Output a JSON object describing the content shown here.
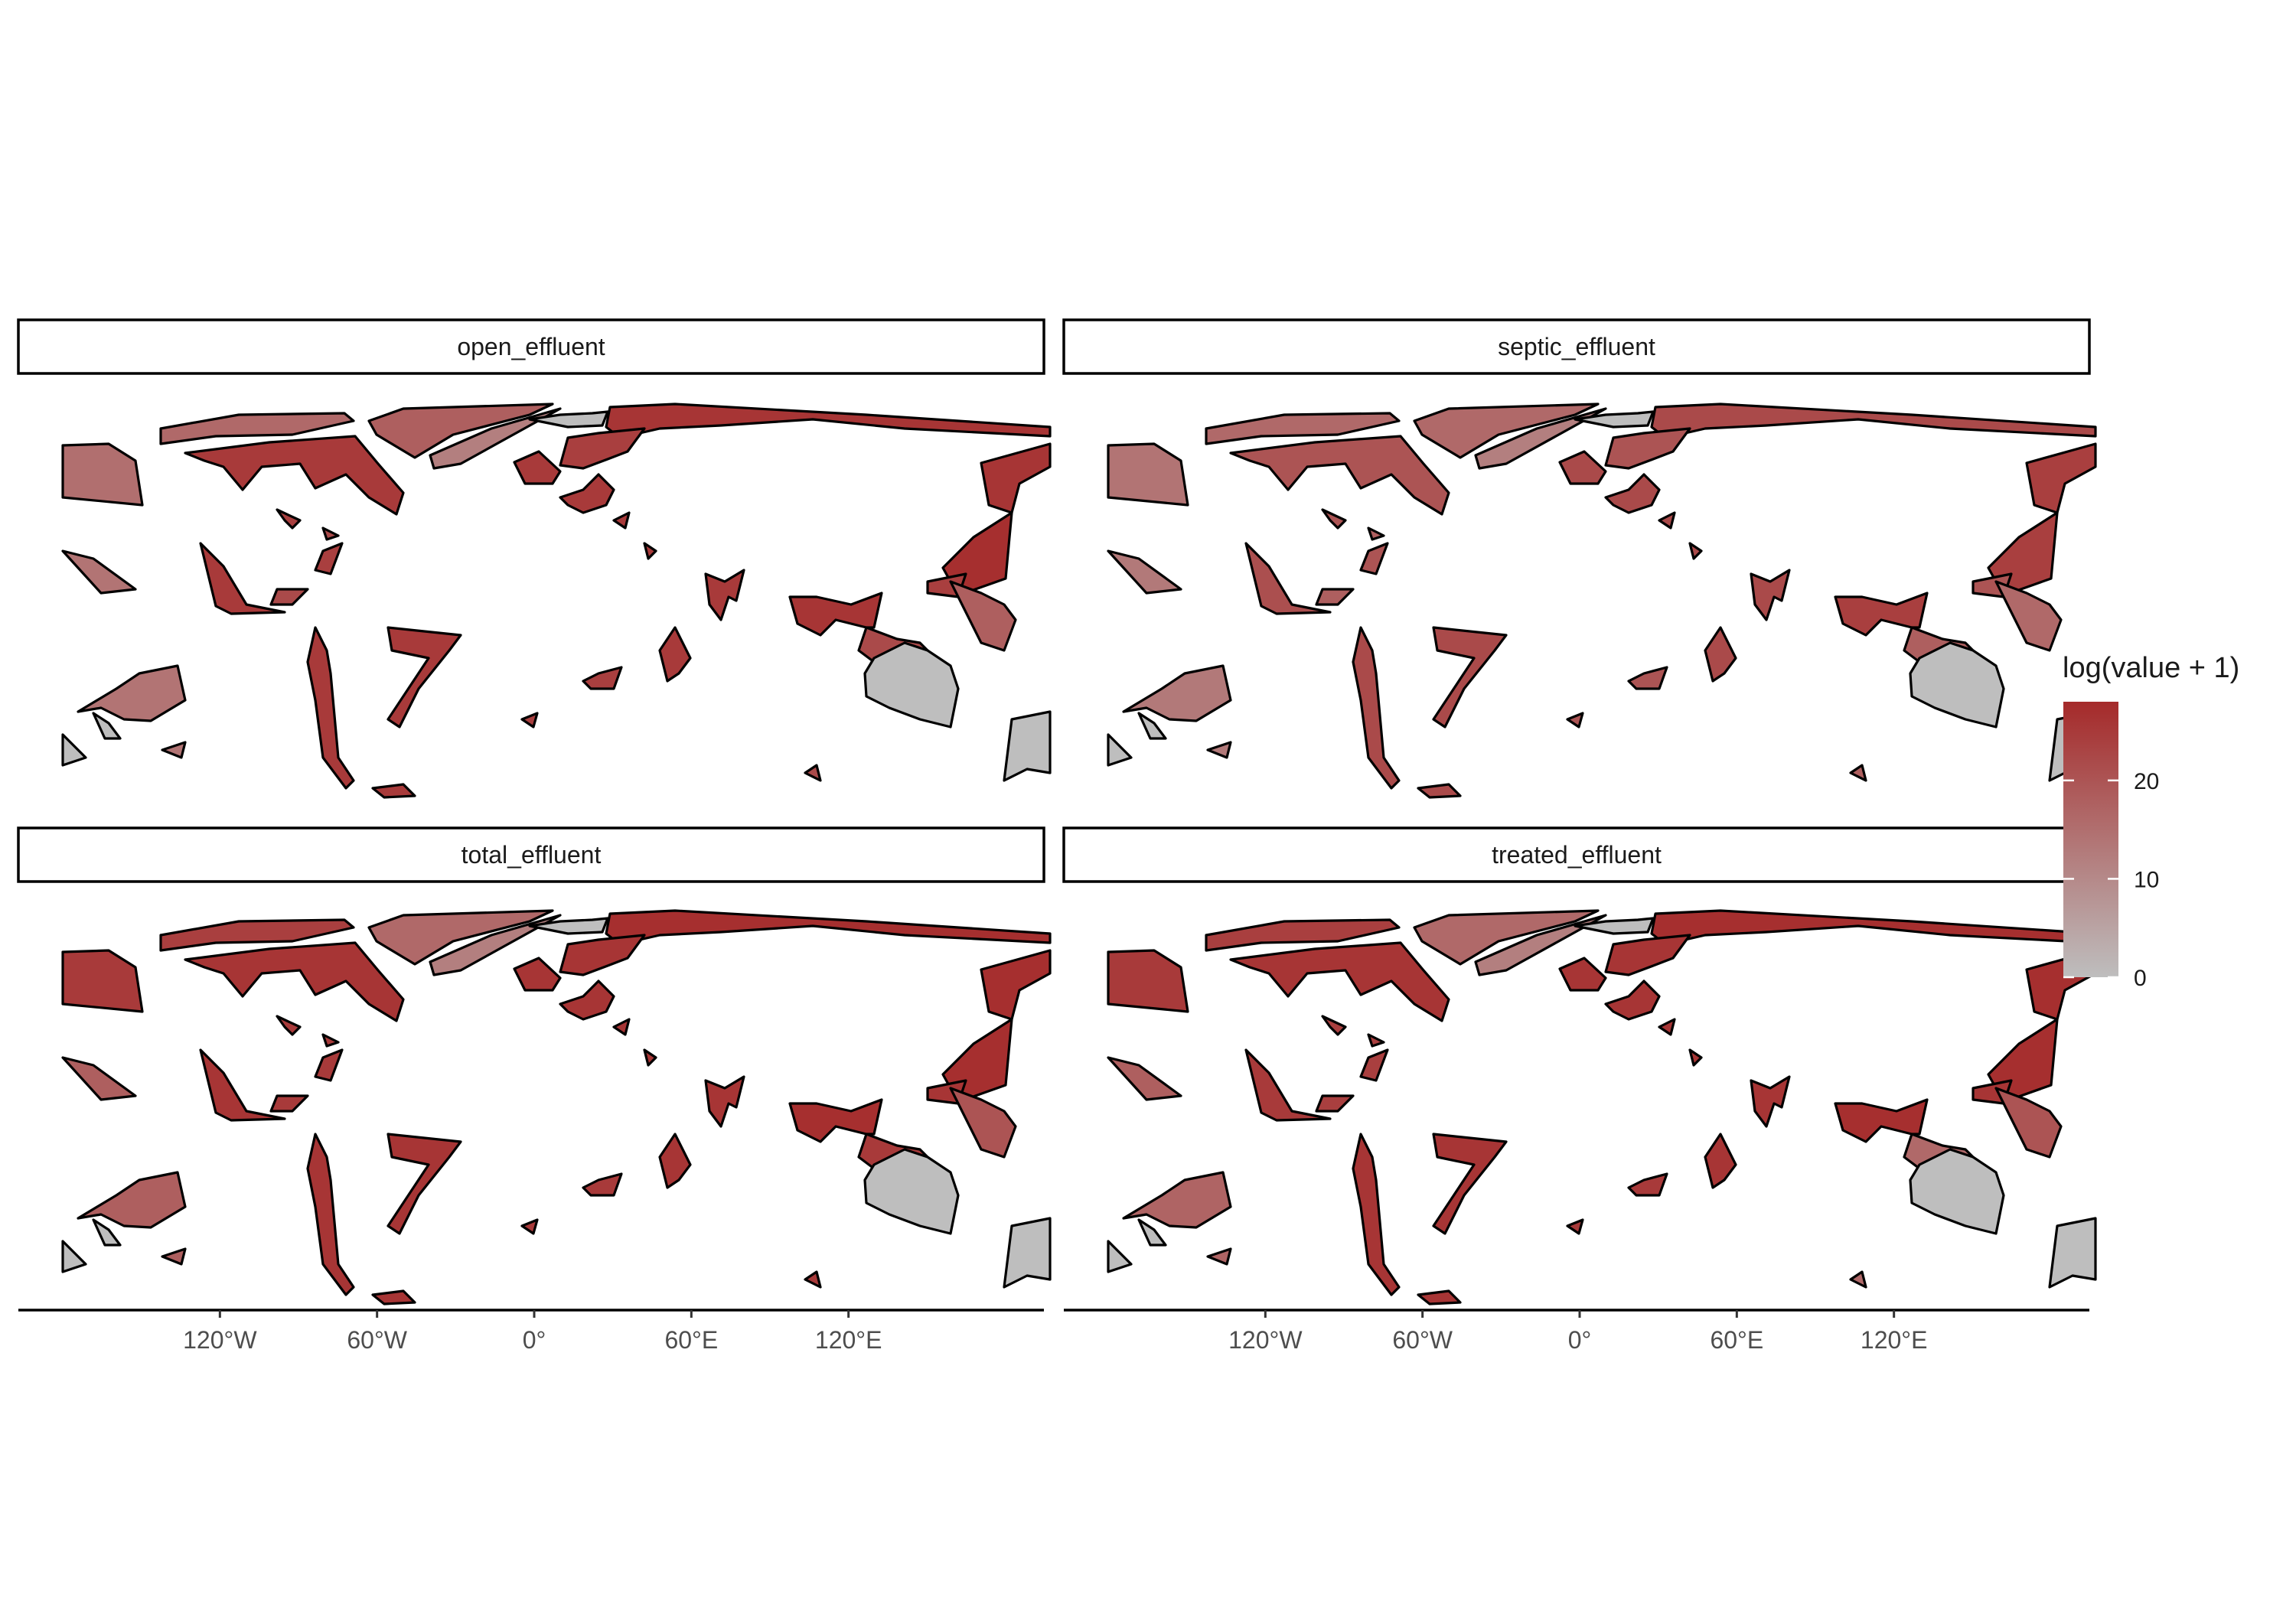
{
  "chart_data": {
    "type": "choropleth-map",
    "facets": [
      {
        "strip": "open_effluent",
        "regions": {
          "alaska": 15,
          "canada_west": 16,
          "canada_east": 25,
          "arctic_islands": 18,
          "greenland": 12,
          "iceland": 0,
          "arctic_russia": 26,
          "scandinavia": 24,
          "uk": 25,
          "northern_asia": 26,
          "east_asia": 27,
          "central_asia": 24,
          "europe": 25,
          "usa": 14,
          "mexico": 25,
          "central_america": 22,
          "caribbean": 24,
          "pacific_w": 14,
          "pacific_se": 0,
          "pacific_sw": 0,
          "south_america": 25,
          "brazil": 25,
          "africa_w": 24,
          "africa_e": 25,
          "middle_east": 25,
          "south_asia": 26,
          "se_asia": 22,
          "maritime_se_asia": 18,
          "australia": 0,
          "nz": 0
        }
      },
      {
        "strip": "septic_effluent",
        "regions": {
          "alaska": 14,
          "canada_west": 16,
          "canada_east": 20,
          "arctic_islands": 16,
          "greenland": 12,
          "iceland": 0,
          "arctic_russia": 22,
          "scandinavia": 20,
          "uk": 22,
          "northern_asia": 24,
          "east_asia": 24,
          "central_asia": 20,
          "europe": 22,
          "usa": 13,
          "mexico": 21,
          "central_america": 18,
          "caribbean": 20,
          "pacific_w": 13,
          "pacific_se": 0,
          "pacific_sw": 0,
          "south_america": 22,
          "brazil": 22,
          "africa_w": 20,
          "africa_e": 22,
          "middle_east": 22,
          "south_asia": 24,
          "se_asia": 18,
          "maritime_se_asia": 16,
          "australia": 0,
          "nz": 0
        }
      },
      {
        "strip": "total_effluent",
        "regions": {
          "alaska": 25,
          "canada_west": 24,
          "canada_east": 26,
          "arctic_islands": 16,
          "greenland": 12,
          "iceland": 0,
          "arctic_russia": 27,
          "scandinavia": 26,
          "uk": 26,
          "northern_asia": 27,
          "east_asia": 27,
          "central_asia": 26,
          "europe": 26,
          "usa": 18,
          "mexico": 26,
          "central_america": 25,
          "caribbean": 25,
          "pacific_w": 18,
          "pacific_se": 0,
          "pacific_sw": 0,
          "south_america": 26,
          "brazil": 26,
          "africa_w": 25,
          "africa_e": 26,
          "middle_east": 26,
          "south_asia": 27,
          "se_asia": 25,
          "maritime_se_asia": 20,
          "australia": 0,
          "nz": 0
        }
      },
      {
        "strip": "treated_effluent",
        "regions": {
          "alaska": 25,
          "canada_west": 24,
          "canada_east": 26,
          "arctic_islands": 16,
          "greenland": 12,
          "iceland": 0,
          "arctic_russia": 27,
          "scandinavia": 26,
          "uk": 26,
          "northern_asia": 27,
          "east_asia": 27,
          "central_asia": 26,
          "europe": 26,
          "usa": 18,
          "mexico": 25,
          "central_america": 24,
          "caribbean": 24,
          "pacific_w": 17,
          "pacific_se": 0,
          "pacific_sw": 0,
          "south_america": 26,
          "brazil": 26,
          "africa_w": 25,
          "africa_e": 26,
          "middle_east": 26,
          "south_asia": 27,
          "se_asia": 16,
          "maritime_se_asia": 20,
          "australia": 0,
          "nz": 0
        }
      }
    ],
    "x_ticks": [
      "120°W",
      "60°W",
      "0°",
      "60°E",
      "120°E"
    ],
    "x_tick_lon": [
      -120,
      -60,
      0,
      60,
      120
    ],
    "x_range": [
      -180,
      180
    ],
    "legend": {
      "title": "log(value + 1)",
      "ticks": [
        0,
        10,
        20
      ],
      "range": [
        0,
        28
      ],
      "low_color": "#bebebe",
      "high_color": "#a52a2a",
      "position": "right"
    },
    "grid": false
  }
}
